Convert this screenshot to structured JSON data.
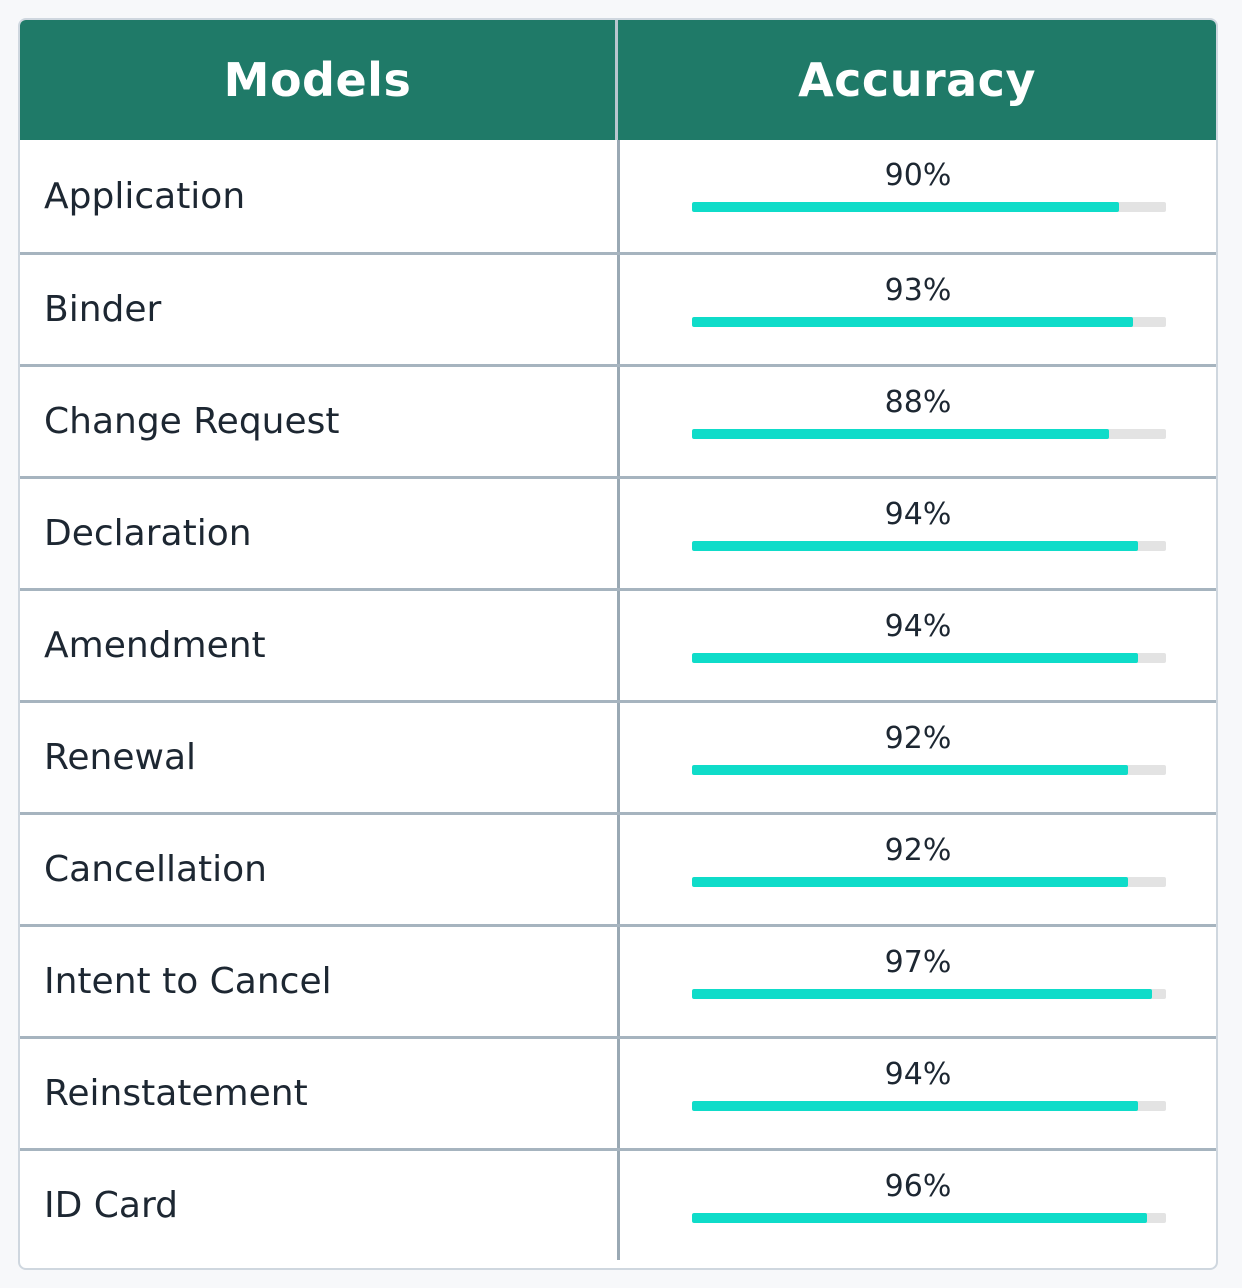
{
  "header": {
    "models_label": "Models",
    "accuracy_label": "Accuracy"
  },
  "colors": {
    "header_bg": "#1f7a68",
    "bar_fill": "#0fdcc9",
    "bar_track": "#e3e3e3"
  },
  "rows": [
    {
      "model": "Application",
      "accuracy_label": "90%",
      "accuracy": 90
    },
    {
      "model": "Binder",
      "accuracy_label": "93%",
      "accuracy": 93
    },
    {
      "model": "Change Request",
      "accuracy_label": "88%",
      "accuracy": 88
    },
    {
      "model": "Declaration",
      "accuracy_label": "94%",
      "accuracy": 94
    },
    {
      "model": "Amendment",
      "accuracy_label": "94%",
      "accuracy": 94
    },
    {
      "model": "Renewal",
      "accuracy_label": "92%",
      "accuracy": 92
    },
    {
      "model": "Cancellation",
      "accuracy_label": "92%",
      "accuracy": 92
    },
    {
      "model": "Intent to Cancel",
      "accuracy_label": "97%",
      "accuracy": 97
    },
    {
      "model": "Reinstatement",
      "accuracy_label": "94%",
      "accuracy": 94
    },
    {
      "model": "ID Card",
      "accuracy_label": "96%",
      "accuracy": 96
    }
  ]
}
